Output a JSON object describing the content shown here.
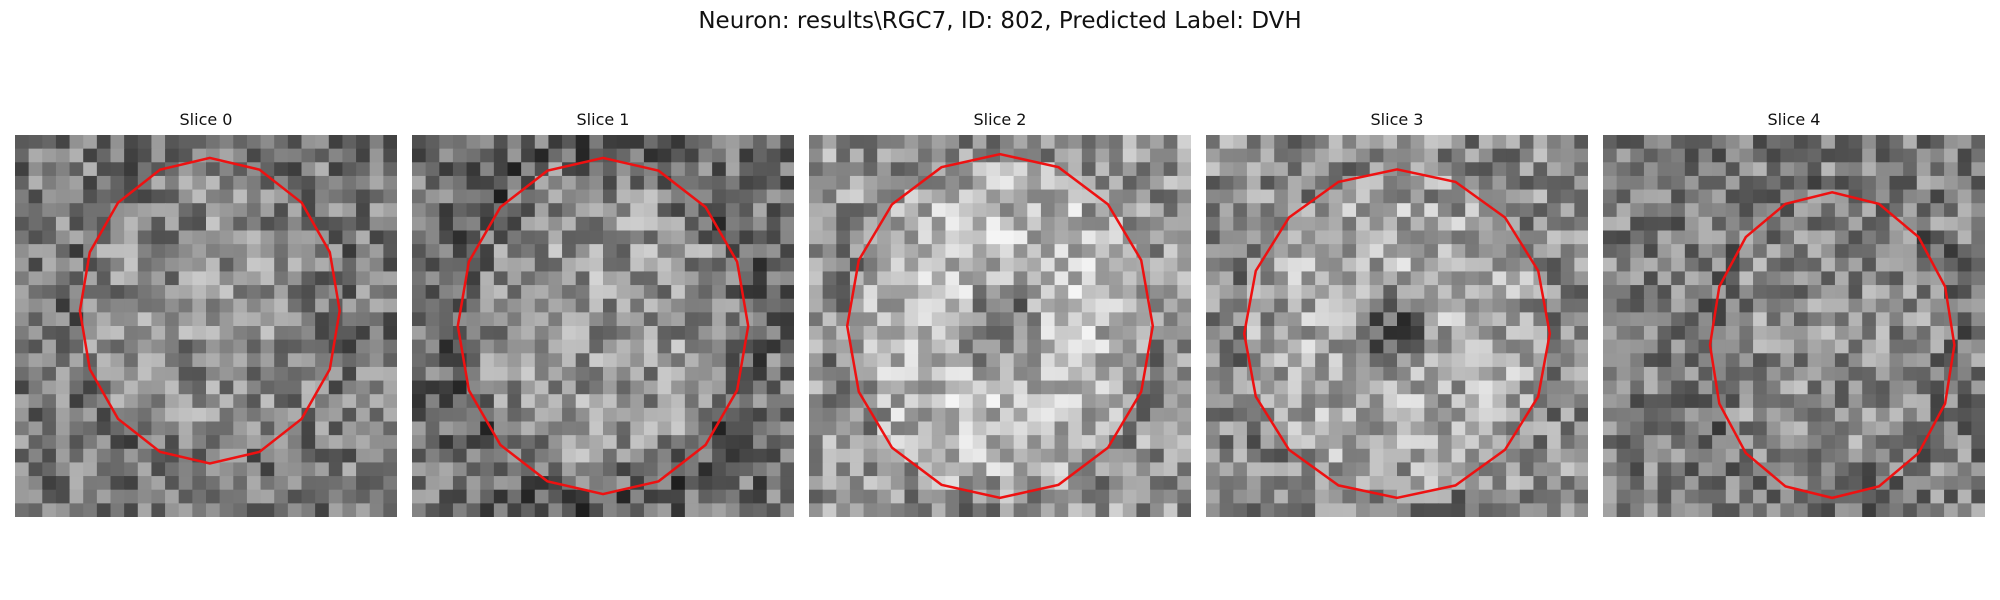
{
  "figure": {
    "title": "Neuron: results\\RGC7, ID: 802, Predicted Label: DVH"
  },
  "contour_color": "#ee1111",
  "slices": [
    {
      "label": "Slice 0"
    },
    {
      "label": "Slice 1"
    },
    {
      "label": "Slice 2"
    },
    {
      "label": "Slice 3"
    },
    {
      "label": "Slice 4"
    }
  ]
}
